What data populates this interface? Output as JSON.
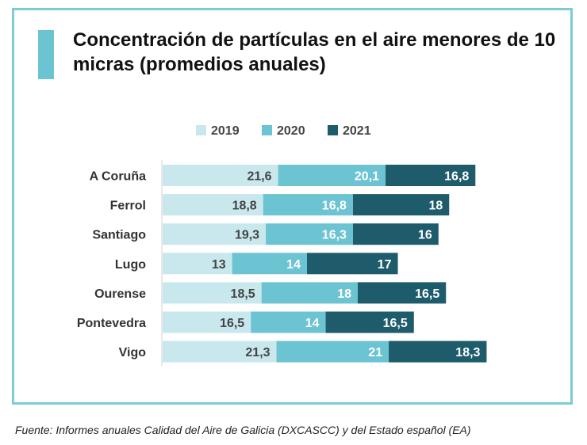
{
  "chart_data": {
    "type": "bar",
    "orientation": "horizontal",
    "stacked": true,
    "title": "Concentración de partículas en el aire menores de 10 micras (promedios anuales)",
    "categories": [
      "A Coruña",
      "Ferrol",
      "Santiago",
      "Lugo",
      "Ourense",
      "Pontevedra",
      "Vigo"
    ],
    "series": [
      {
        "name": "2019",
        "color": "#c8e8ee",
        "label_color": "#444444",
        "values": [
          21.6,
          18.8,
          19.3,
          13,
          18.5,
          16.5,
          21.3
        ],
        "labels": [
          "21,6",
          "18,8",
          "19,3",
          "13",
          "18,5",
          "16,5",
          "21,3"
        ]
      },
      {
        "name": "2020",
        "color": "#6cc3d2",
        "label_color": "#ffffff",
        "values": [
          20.1,
          16.8,
          16.3,
          14,
          18,
          14,
          21
        ],
        "labels": [
          "20,1",
          "16,8",
          "16,3",
          "14",
          "18",
          "14",
          "21"
        ]
      },
      {
        "name": "2021",
        "color": "#1e5c6b",
        "label_color": "#ffffff",
        "values": [
          16.8,
          18,
          16,
          17,
          16.5,
          16.5,
          18.3
        ],
        "labels": [
          "16,8",
          "18",
          "16",
          "17",
          "16,5",
          "16,5",
          "18,3"
        ]
      }
    ],
    "legend_position": "top",
    "grid": false
  },
  "source_text": "Fuente: Informes anuales Calidad del Aire de Galicia (DXCASCC) y del Estado español (EA)",
  "colors": {
    "frame": "#7ccbd7",
    "accent": "#6cc3d2"
  }
}
